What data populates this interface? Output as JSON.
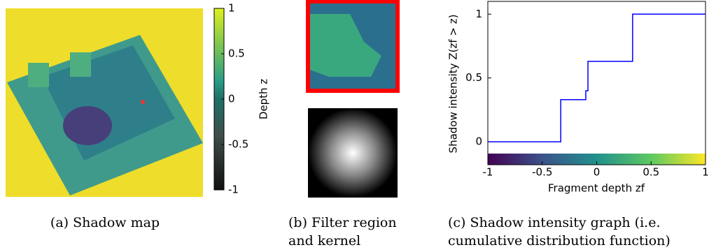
{
  "chart_data": [
    {
      "type": "colorbar",
      "label": "Depth z",
      "ylim": [
        -1,
        1
      ],
      "yticks": [
        1,
        0.5,
        0,
        -0.5,
        -1
      ]
    },
    {
      "type": "line",
      "xlabel": "Fragment depth zf",
      "ylabel": "Shadow intensity Z(zf > z)",
      "x": [
        -1,
        -0.33,
        -0.33,
        -0.1,
        -0.1,
        -0.08,
        -0.08,
        0.33,
        0.33,
        1
      ],
      "values": [
        0,
        0,
        0.33,
        0.33,
        0.4,
        0.4,
        0.63,
        0.63,
        1,
        1
      ],
      "color": "#0000ff",
      "xlim": [
        -1,
        1
      ],
      "xticks": [
        -1,
        -0.5,
        0,
        0.5,
        1
      ],
      "ylim": [
        -0.18,
        1.1
      ],
      "yticks": [
        0,
        0.5,
        1
      ]
    }
  ],
  "captions": [
    "(a) Shadow map",
    "(b) Filter region",
    "and kernel",
    "(c) Shadow intensity graph (i.e.",
    "cumulative distribution function)"
  ]
}
